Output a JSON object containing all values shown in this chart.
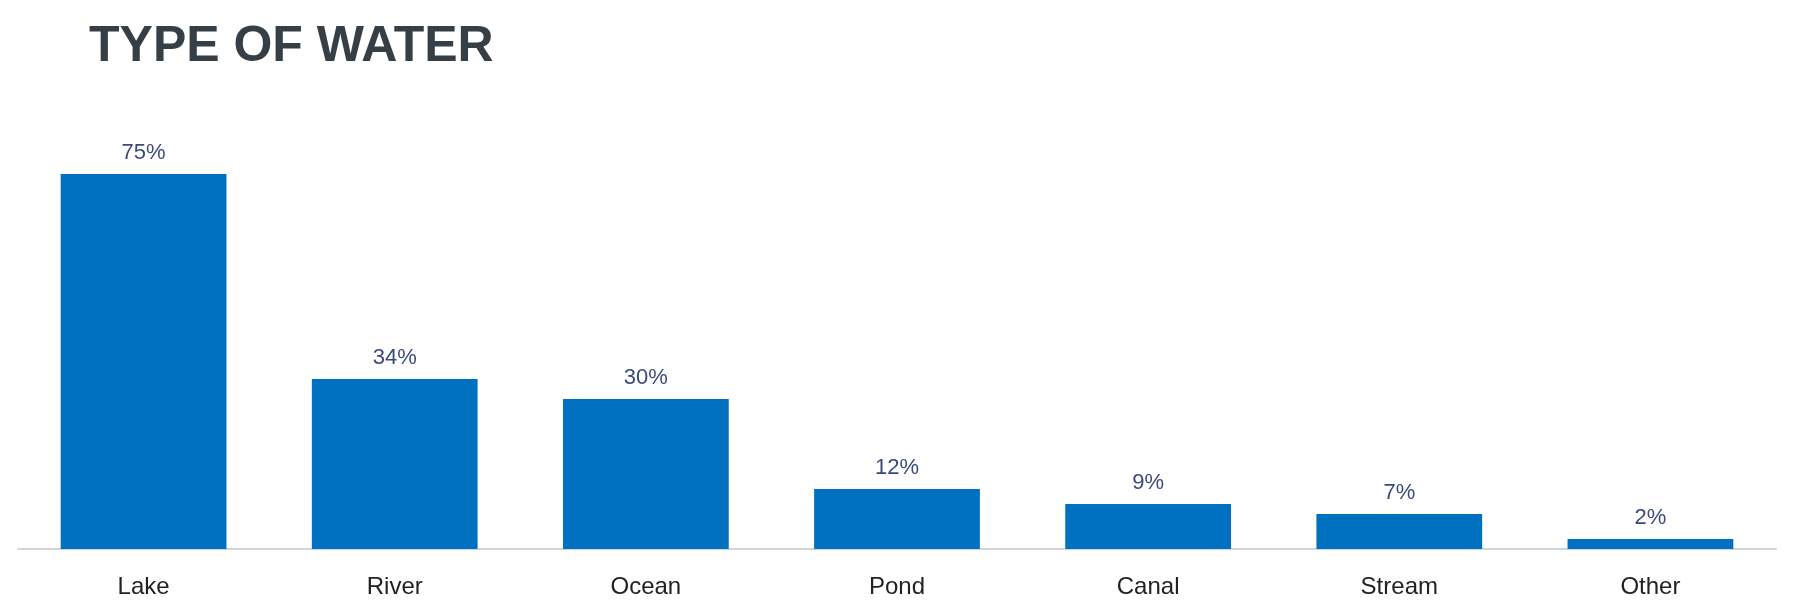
{
  "chart_data": {
    "type": "bar",
    "title": "TYPE OF WATER",
    "categories": [
      "Lake",
      "River",
      "Ocean",
      "Pond",
      "Canal",
      "Stream",
      "Other"
    ],
    "values": [
      75,
      34,
      30,
      12,
      9,
      7,
      2
    ],
    "value_labels": [
      "75%",
      "34%",
      "30%",
      "12%",
      "9%",
      "7%",
      "2%"
    ],
    "color": "#0070c0"
  }
}
